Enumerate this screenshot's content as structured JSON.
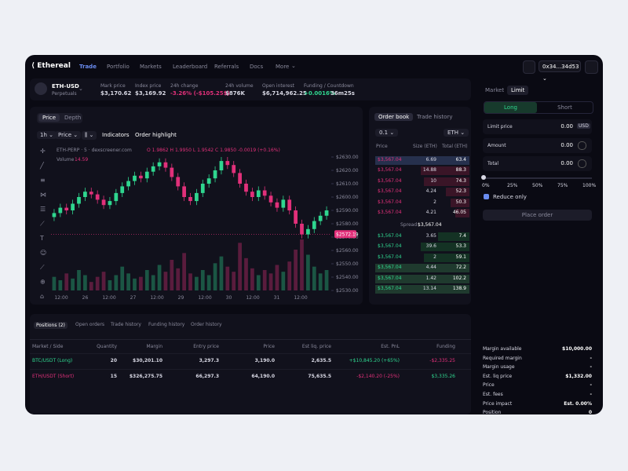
{
  "nav": {
    "logo": "Ethereal",
    "tabs": [
      "Trade",
      "Portfolio",
      "Markets",
      "Leaderboard",
      "Referrals",
      "Docs",
      "More"
    ],
    "wallet": "0x34...34d53"
  },
  "market": {
    "symbol": "ETH-USD",
    "kind": "Perpetuals",
    "stats": [
      {
        "label": "Mark price",
        "value": "$3,170.62"
      },
      {
        "label": "Index price",
        "value": "$3,169.92"
      },
      {
        "label": "24h change",
        "value": "-3.26% (-$105.25$)"
      },
      {
        "label": "24h volume",
        "value": "$876K"
      },
      {
        "label": "Open interest",
        "value": "$6,714,962.25"
      },
      {
        "label": "Funding / Countdown",
        "value": "+0.0016%",
        "extra": "36m25s"
      }
    ]
  },
  "chart": {
    "tabs": [
      "Price",
      "Depth"
    ],
    "interval": "1h",
    "mode": "Price",
    "tools": [
      "Indicators",
      "Order highlight"
    ],
    "legend": "ETH-PERP · 5 · dexscreener.com",
    "ohlc": "O 1.9862 H 1.9950 L 1.9542 C 1.9850 -0.0019 (+0.16%)",
    "volume_label": "Volume",
    "volume_value": "14.59",
    "up_color": "#2fd68f",
    "down_color": "#e2307a",
    "ylim": [
      2530,
      2630
    ],
    "yticks": [
      {
        "value": 2630,
        "label": "$2630.00"
      },
      {
        "value": 2620,
        "label": "$2620.00"
      },
      {
        "value": 2610,
        "label": "$2610.00"
      },
      {
        "value": 2600,
        "label": "$2600.00"
      },
      {
        "value": 2590,
        "label": "$2590.00"
      },
      {
        "value": 2580,
        "label": "$2580.00"
      },
      {
        "value": 2570,
        "label": "$2570.00"
      },
      {
        "value": 2560,
        "label": "$2560.00"
      },
      {
        "value": 2550,
        "label": "$2550.00"
      },
      {
        "value": 2540,
        "label": "$2540.00"
      },
      {
        "value": 2530,
        "label": "$2530.00"
      }
    ],
    "last_price": {
      "value": 2572.19,
      "label": "$2572.19"
    },
    "time_labels": [
      "12:00",
      "26",
      "12:00",
      "27",
      "12:00",
      "29",
      "12:00",
      "30",
      "12:00",
      "31",
      "12:00"
    ],
    "candles": [
      [
        2585,
        2591,
        2582,
        2588
      ],
      [
        2588,
        2595,
        2585,
        2592
      ],
      [
        2592,
        2595,
        2587,
        2590
      ],
      [
        2590,
        2598,
        2587,
        2595
      ],
      [
        2595,
        2603,
        2592,
        2600
      ],
      [
        2600,
        2607,
        2597,
        2604
      ],
      [
        2604,
        2607,
        2599,
        2602
      ],
      [
        2602,
        2605,
        2595,
        2598
      ],
      [
        2598,
        2601,
        2591,
        2594
      ],
      [
        2594,
        2600,
        2591,
        2597
      ],
      [
        2597,
        2606,
        2594,
        2603
      ],
      [
        2603,
        2611,
        2600,
        2608
      ],
      [
        2608,
        2615,
        2605,
        2612
      ],
      [
        2612,
        2619,
        2609,
        2616
      ],
      [
        2616,
        2619,
        2611,
        2614
      ],
      [
        2614,
        2622,
        2611,
        2619
      ],
      [
        2619,
        2626,
        2616,
        2623
      ],
      [
        2623,
        2629,
        2620,
        2626
      ],
      [
        2626,
        2629,
        2619,
        2622
      ],
      [
        2622,
        2625,
        2612,
        2615
      ],
      [
        2615,
        2618,
        2605,
        2608
      ],
      [
        2608,
        2611,
        2597,
        2600
      ],
      [
        2600,
        2603,
        2594,
        2597
      ],
      [
        2597,
        2606,
        2594,
        2603
      ],
      [
        2603,
        2613,
        2600,
        2610
      ],
      [
        2610,
        2617,
        2607,
        2614
      ],
      [
        2614,
        2623,
        2611,
        2620
      ],
      [
        2620,
        2630,
        2617,
        2627
      ],
      [
        2627,
        2630,
        2621,
        2624
      ],
      [
        2624,
        2627,
        2615,
        2618
      ],
      [
        2618,
        2621,
        2607,
        2610
      ],
      [
        2610,
        2613,
        2601,
        2604
      ],
      [
        2604,
        2607,
        2597,
        2600
      ],
      [
        2600,
        2608,
        2597,
        2605
      ],
      [
        2605,
        2608,
        2598,
        2601
      ],
      [
        2601,
        2604,
        2593,
        2596
      ],
      [
        2596,
        2599,
        2589,
        2592
      ],
      [
        2592,
        2601,
        2589,
        2598
      ],
      [
        2598,
        2601,
        2587,
        2590
      ],
      [
        2590,
        2593,
        2577,
        2580
      ],
      [
        2580,
        2583,
        2569,
        2572
      ],
      [
        2572,
        2579,
        2569,
        2576
      ],
      [
        2576,
        2585,
        2573,
        2582
      ],
      [
        2582,
        2589,
        2579,
        2586
      ],
      [
        2586,
        2593,
        2583,
        2590
      ]
    ],
    "volumes": [
      8,
      6,
      10,
      7,
      12,
      9,
      5,
      8,
      11,
      6,
      9,
      14,
      10,
      7,
      8,
      12,
      9,
      15,
      11,
      18,
      13,
      22,
      10,
      8,
      12,
      9,
      16,
      20,
      14,
      11,
      28,
      19,
      13,
      9,
      12,
      10,
      15,
      11,
      17,
      24,
      30,
      21,
      14,
      10,
      12
    ]
  },
  "orderbook": {
    "tabs": [
      "Order book",
      "Trade history"
    ],
    "step": "0.1",
    "unit": "ETH",
    "headers": [
      "Price",
      "Size (ETH)",
      "Total (ETH)"
    ],
    "spread_label": "Spread",
    "spread": "$3,567.04",
    "asks": [
      [
        "$3,567.04",
        "6.69",
        "63.4"
      ],
      [
        "$3,567.04",
        "14.88",
        "88.3"
      ],
      [
        "$3,567.04",
        "10",
        "74.3"
      ],
      [
        "$3,567.04",
        "4.24",
        "52.3"
      ],
      [
        "$3,567.04",
        "2",
        "50.3"
      ],
      [
        "$3,567.04",
        "4.21",
        "46.05"
      ]
    ],
    "bids": [
      [
        "$3,567.04",
        "3.65",
        "7.4"
      ],
      [
        "$3,567.04",
        "39.6",
        "53.3"
      ],
      [
        "$3,567.04",
        "2",
        "59.1"
      ],
      [
        "$3,567.04",
        "4.44",
        "72.2"
      ],
      [
        "$3,567.04",
        "1.42",
        "102.2"
      ],
      [
        "$3,567.04",
        "13.14",
        "138.9"
      ]
    ]
  },
  "order_form": {
    "types": [
      "Market",
      "Limit"
    ],
    "sides": [
      "Long",
      "Short"
    ],
    "fields": [
      {
        "label": "Limit price",
        "value": "0.00",
        "unit": "USD"
      },
      {
        "label": "Amount",
        "value": "0.00"
      },
      {
        "label": "Total",
        "value": "0.00"
      }
    ],
    "slider": [
      "0%",
      "25%",
      "50%",
      "75%",
      "100%"
    ],
    "reduce_only": "Reduce only",
    "submit": "Place order"
  },
  "positions": {
    "tabs": [
      "Positions (2)",
      "Open orders",
      "Trade history",
      "Funding history",
      "Order history"
    ],
    "headers": [
      "Market / Side",
      "Quantity",
      "Margin",
      "Entry price",
      "Price",
      "Est liq. price",
      "Est. PnL",
      "Funding"
    ],
    "rows": [
      [
        "BTC/USDT (Long)",
        "20",
        "$30,201.10",
        "3,297.3",
        "3,190.0",
        "2,635.5",
        "+$10,845.20 (+65%)",
        "-$2,335.25"
      ],
      [
        "ETH/USDT (Short)",
        "15",
        "$326,275.75",
        "66,297.3",
        "64,190.0",
        "75,635.5",
        "-$2,140.20 (-25%)",
        "$3,335.26"
      ]
    ]
  },
  "account": [
    [
      "Margin available",
      "$10,000.00"
    ],
    [
      "Required margin",
      "-"
    ],
    [
      "Margin usage",
      "-"
    ],
    [
      "Est. liq price",
      "$1,332.00"
    ],
    [
      "Price",
      "-"
    ],
    [
      "Est. fees",
      "-"
    ],
    [
      "Price impact",
      "Est. 0.00%"
    ],
    [
      "Position",
      "0"
    ]
  ]
}
